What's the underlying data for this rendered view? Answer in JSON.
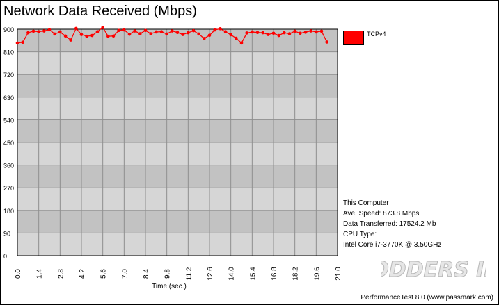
{
  "title": "Network Data Received (Mbps)",
  "legend": {
    "label": "TCPv4",
    "color": "#ff0000"
  },
  "info": {
    "computer": "This Computer",
    "speed": "Ave. Speed: 873.8 Mbps",
    "transferred": "Data Transferred: 17524.2 Mb",
    "cpu_label": "CPU Type:",
    "cpu": "Intel Core i7-3770K @ 3.50GHz"
  },
  "footer": "PerformanceTest 8.0 (www.passmark.com)",
  "watermark": "MODDERS INC",
  "chart_data": {
    "type": "line",
    "xlabel": "Time (sec.)",
    "ylabel": "",
    "xlim": [
      0,
      21.0
    ],
    "ylim": [
      0,
      900
    ],
    "x_ticks": [
      0.0,
      1.4,
      2.8,
      4.2,
      5.6,
      7.0,
      8.4,
      9.8,
      11.2,
      12.6,
      14.0,
      15.4,
      16.8,
      18.2,
      19.6,
      21.0
    ],
    "x_tick_labels": [
      "0.0",
      "1.4",
      "2.8",
      "4.2",
      "5.6",
      "7.0",
      "8.4",
      "9.8",
      "11.2",
      "12.6",
      "14.0",
      "15.4",
      "16.8",
      "18.2",
      "19.6",
      "21.0"
    ],
    "y_ticks": [
      0,
      90,
      180,
      270,
      360,
      450,
      540,
      630,
      720,
      810,
      900
    ],
    "y_tick_labels": [
      "0",
      "90",
      "180",
      "270",
      "360",
      "450",
      "540",
      "630",
      "720",
      "810",
      "900"
    ],
    "grid": true,
    "legend_position": "right",
    "series": [
      {
        "name": "TCPv4",
        "color": "#ff0000",
        "x": [
          0.0,
          0.35,
          0.7,
          1.05,
          1.4,
          1.75,
          2.1,
          2.45,
          2.8,
          3.15,
          3.5,
          3.85,
          4.2,
          4.55,
          4.9,
          5.25,
          5.6,
          5.95,
          6.3,
          6.65,
          7.0,
          7.35,
          7.7,
          8.05,
          8.4,
          8.75,
          9.1,
          9.45,
          9.8,
          10.15,
          10.5,
          10.85,
          11.2,
          11.55,
          11.9,
          12.25,
          12.6,
          12.95,
          13.3,
          13.65,
          14.0,
          14.35,
          14.7,
          15.05,
          15.4,
          15.75,
          16.1,
          16.45,
          16.8,
          17.15,
          17.5,
          17.85,
          18.2,
          18.55,
          18.9,
          19.25,
          19.6,
          19.95,
          20.3
        ],
        "y": [
          845,
          848,
          886,
          892,
          890,
          893,
          898,
          881,
          889,
          873,
          857,
          903,
          879,
          872,
          875,
          890,
          907,
          872,
          873,
          895,
          897,
          880,
          893,
          882,
          895,
          882,
          889,
          890,
          881,
          893,
          887,
          879,
          886,
          894,
          881,
          863,
          876,
          897,
          902,
          890,
          878,
          864,
          845,
          885,
          889,
          887,
          886,
          879,
          884,
          875,
          886,
          882,
          892,
          884,
          888,
          893,
          889,
          892,
          849
        ]
      }
    ]
  }
}
